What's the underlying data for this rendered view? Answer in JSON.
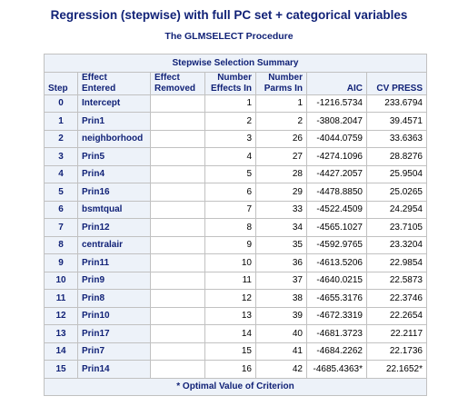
{
  "title": "Regression (stepwise) with full PC set + categorical variables",
  "subtitle": "The GLMSELECT Procedure",
  "table": {
    "caption": "Stepwise Selection Summary",
    "headers": {
      "step": "Step",
      "entered_l1": "Effect",
      "entered_l2": "Entered",
      "removed_l1": "Effect",
      "removed_l2": "Removed",
      "effects_l1": "Number",
      "effects_l2": "Effects In",
      "parms_l1": "Number",
      "parms_l2": "Parms In",
      "aic": "AIC",
      "cvpress": "CV PRESS"
    },
    "rows": [
      {
        "step": "0",
        "entered": "Intercept",
        "removed": "",
        "effects_in": "1",
        "parms_in": "1",
        "aic": "-1216.5734",
        "cv_press": "233.6794"
      },
      {
        "step": "1",
        "entered": "Prin1",
        "removed": "",
        "effects_in": "2",
        "parms_in": "2",
        "aic": "-3808.2047",
        "cv_press": "39.4571"
      },
      {
        "step": "2",
        "entered": "neighborhood",
        "removed": "",
        "effects_in": "3",
        "parms_in": "26",
        "aic": "-4044.0759",
        "cv_press": "33.6363"
      },
      {
        "step": "3",
        "entered": "Prin5",
        "removed": "",
        "effects_in": "4",
        "parms_in": "27",
        "aic": "-4274.1096",
        "cv_press": "28.8276"
      },
      {
        "step": "4",
        "entered": "Prin4",
        "removed": "",
        "effects_in": "5",
        "parms_in": "28",
        "aic": "-4427.2057",
        "cv_press": "25.9504"
      },
      {
        "step": "5",
        "entered": "Prin16",
        "removed": "",
        "effects_in": "6",
        "parms_in": "29",
        "aic": "-4478.8850",
        "cv_press": "25.0265"
      },
      {
        "step": "6",
        "entered": "bsmtqual",
        "removed": "",
        "effects_in": "7",
        "parms_in": "33",
        "aic": "-4522.4509",
        "cv_press": "24.2954"
      },
      {
        "step": "7",
        "entered": "Prin12",
        "removed": "",
        "effects_in": "8",
        "parms_in": "34",
        "aic": "-4565.1027",
        "cv_press": "23.7105"
      },
      {
        "step": "8",
        "entered": "centralair",
        "removed": "",
        "effects_in": "9",
        "parms_in": "35",
        "aic": "-4592.9765",
        "cv_press": "23.3204"
      },
      {
        "step": "9",
        "entered": "Prin11",
        "removed": "",
        "effects_in": "10",
        "parms_in": "36",
        "aic": "-4613.5206",
        "cv_press": "22.9854"
      },
      {
        "step": "10",
        "entered": "Prin9",
        "removed": "",
        "effects_in": "11",
        "parms_in": "37",
        "aic": "-4640.0215",
        "cv_press": "22.5873"
      },
      {
        "step": "11",
        "entered": "Prin8",
        "removed": "",
        "effects_in": "12",
        "parms_in": "38",
        "aic": "-4655.3176",
        "cv_press": "22.3746"
      },
      {
        "step": "12",
        "entered": "Prin10",
        "removed": "",
        "effects_in": "13",
        "parms_in": "39",
        "aic": "-4672.3319",
        "cv_press": "22.2654"
      },
      {
        "step": "13",
        "entered": "Prin17",
        "removed": "",
        "effects_in": "14",
        "parms_in": "40",
        "aic": "-4681.3723",
        "cv_press": "22.2117"
      },
      {
        "step": "14",
        "entered": "Prin7",
        "removed": "",
        "effects_in": "15",
        "parms_in": "41",
        "aic": "-4684.2262",
        "cv_press": "22.1736"
      },
      {
        "step": "15",
        "entered": "Prin14",
        "removed": "",
        "effects_in": "16",
        "parms_in": "42",
        "aic": "-4685.4363*",
        "cv_press": "22.1652*"
      }
    ],
    "footnote": "* Optimal Value of Criterion"
  },
  "colors": {
    "title_text": "#112277",
    "header_background": "#edf2f9",
    "border": "#c1c1c1"
  }
}
